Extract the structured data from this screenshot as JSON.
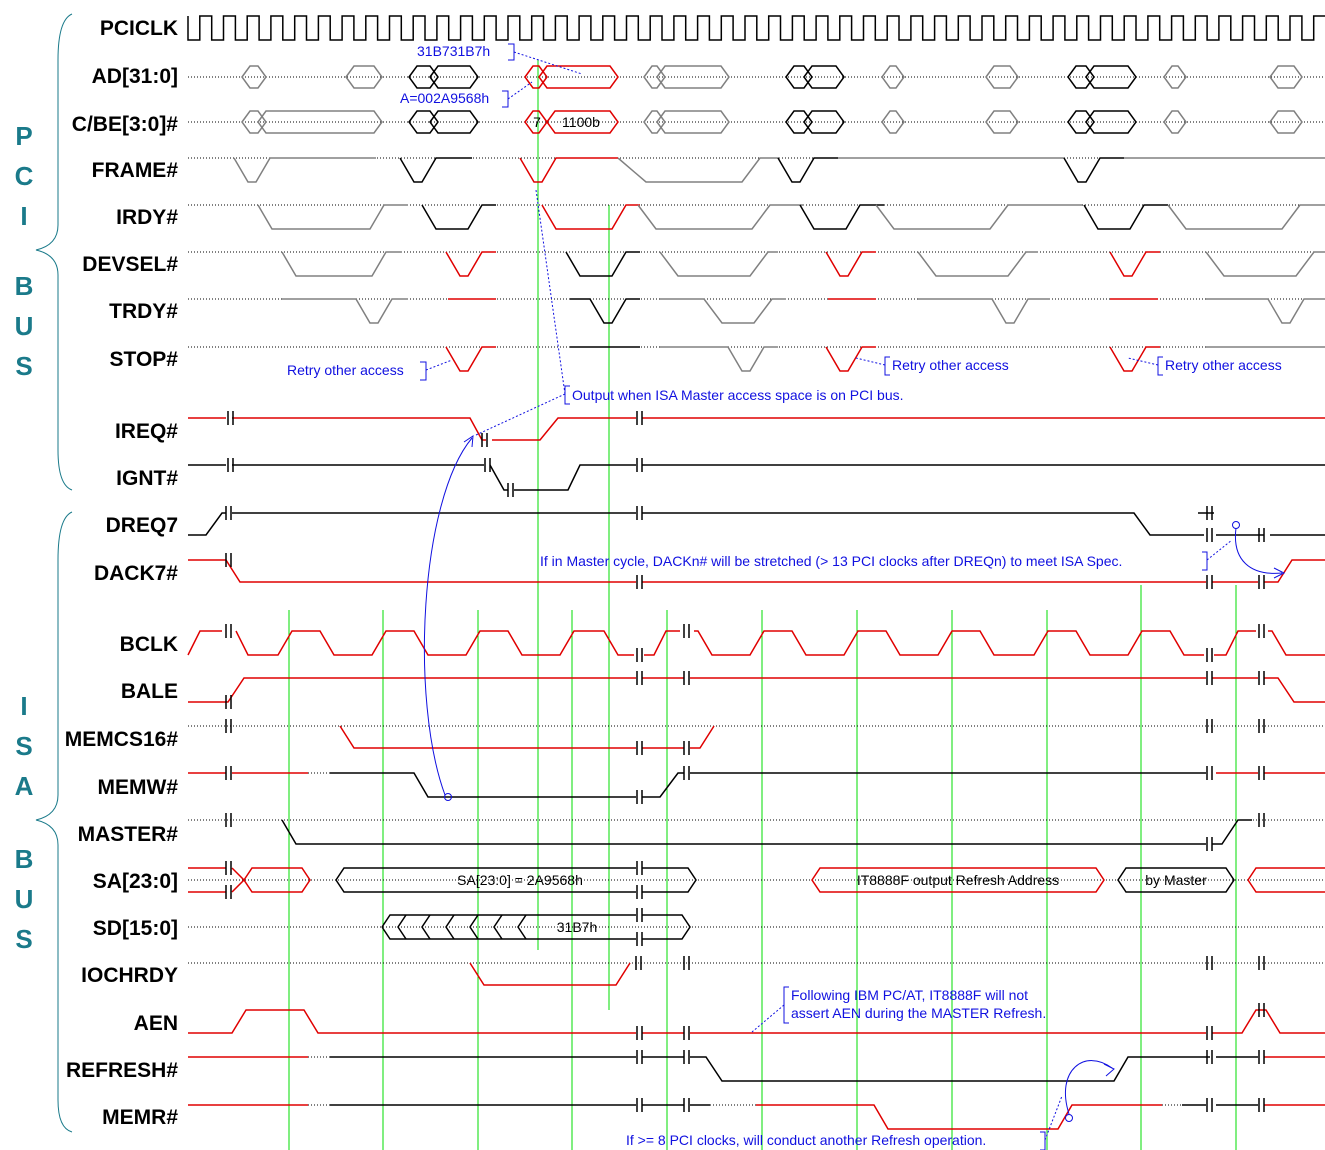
{
  "signals": {
    "pci": [
      "PCICLK",
      "AD[31:0]",
      "C/BE[3:0]#",
      "FRAME#",
      "IRDY#",
      "DEVSEL#",
      "TRDY#",
      "STOP#",
      "IREQ#",
      "IGNT#"
    ],
    "isa": [
      "DREQ7",
      "DACK7#",
      "BCLK",
      "BALE",
      "MEMCS16#",
      "MEMW#",
      "MASTER#",
      "SA[23:0]",
      "SD[15:0]",
      "IOCHRDY",
      "AEN",
      "REFRESH#",
      "MEMR#"
    ]
  },
  "bus_labels": {
    "pci": [
      "P",
      "C",
      "I",
      "B",
      "U",
      "S"
    ],
    "isa": [
      "I",
      "S",
      "A",
      "B",
      "U",
      "S"
    ]
  },
  "bus_values": {
    "ad_data": "31B731B7h",
    "ad_addr": "A=002A9568h",
    "cbe_cmd": "7",
    "cbe_be": "1100b",
    "sa_addr": "SA[23:0] = 2A9568h",
    "sa_refresh": "IT8888F output Refresh Address",
    "sa_master": "by Master",
    "sd_data": "31B7h"
  },
  "annotations": {
    "retry_1": "Retry other access",
    "retry_2": "Retry other access",
    "retry_3": "Retry other access",
    "output_isa": "Output when ISA Master access space is on PCI bus.",
    "dack_note": "If in Master cycle, DACKn# will be stretched (> 13 PCI clocks after DREQn) to meet ISA Spec.",
    "aen_note_1": "Following IBM PC/AT, IT8888F will not",
    "aen_note_2": "assert AEN during the MASTER Refresh.",
    "refresh_note": "If >= 8 PCI clocks, will conduct another Refresh operation."
  },
  "colors": {
    "active": "#e00000",
    "idle": "#808080",
    "normal": "#000000",
    "annotation": "#1010e0",
    "guide": "#00dd00",
    "bus_label": "#1a7a8a"
  }
}
